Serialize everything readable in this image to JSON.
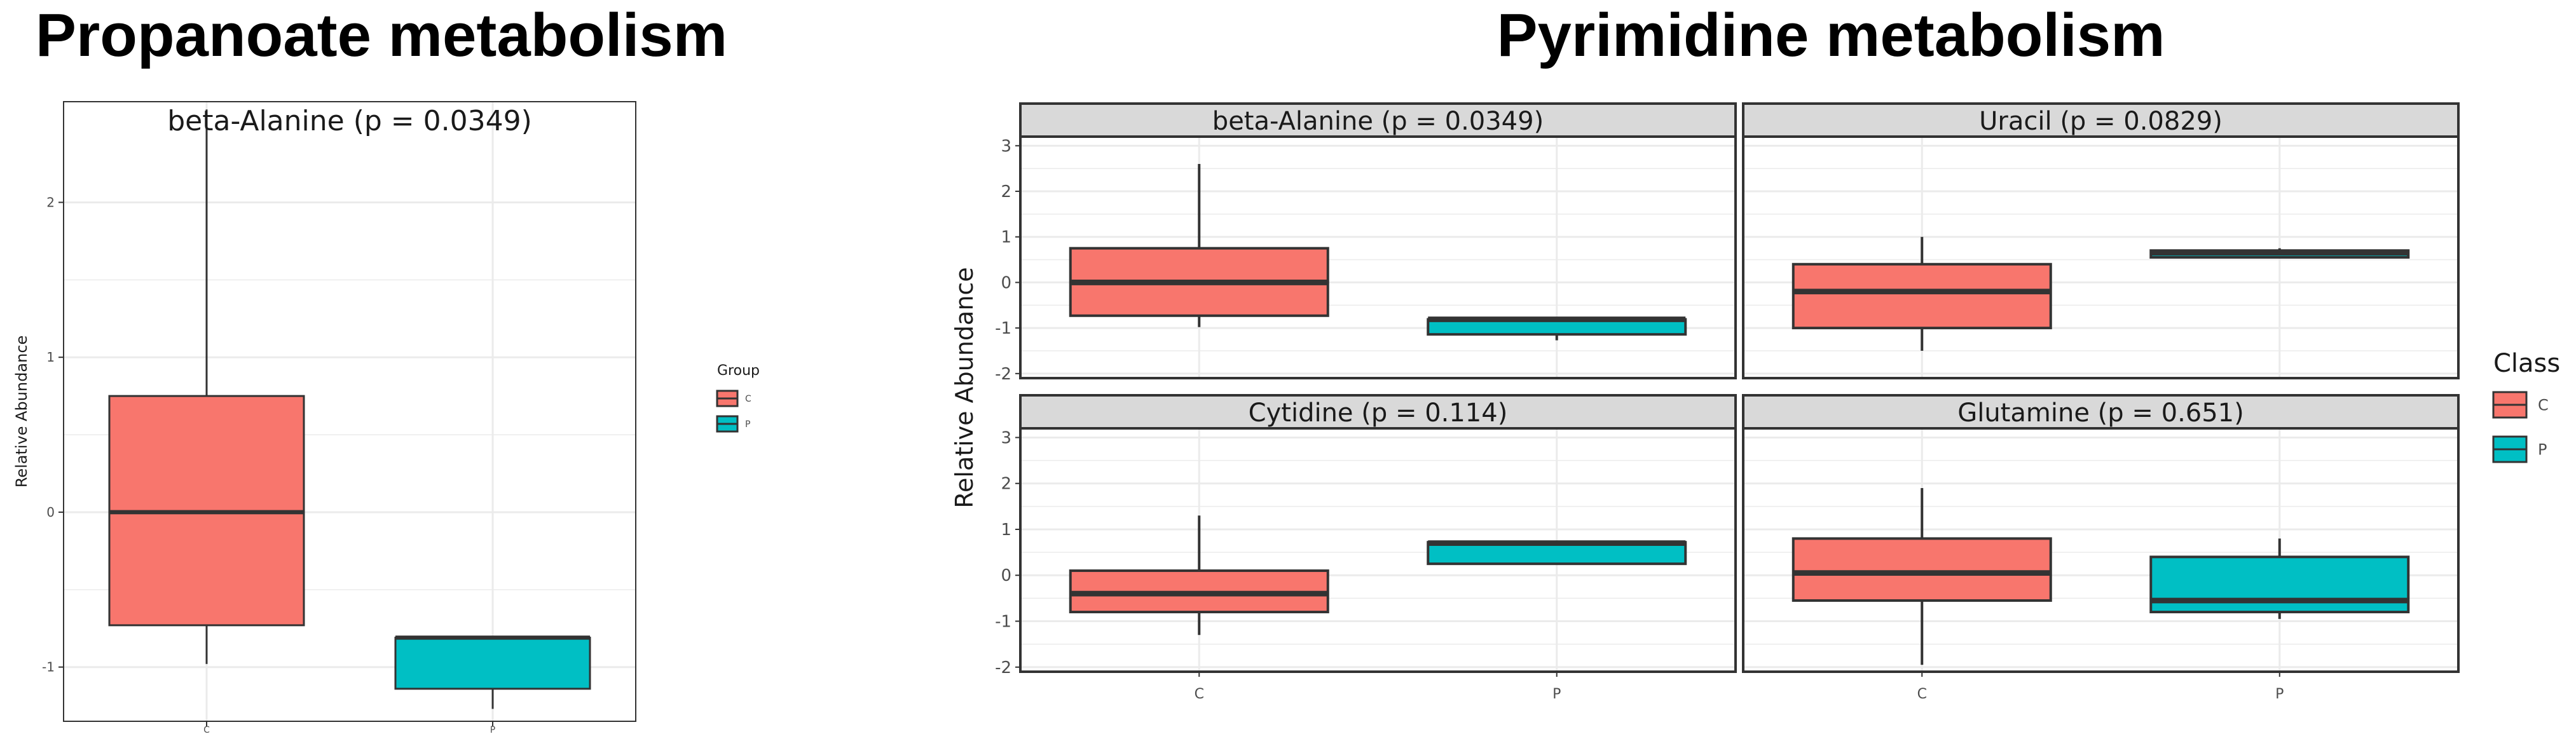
{
  "titles": {
    "left": "Propanoate metabolism",
    "right": "Pyrimidine metabolism"
  },
  "colors": {
    "C": "#F8766D",
    "P": "#00BFC4",
    "panel_bg": "#ffffff",
    "grid": "#ebebeb",
    "strip_bg": "#d9d9d9",
    "strip_border": "#333333",
    "box_outline": "#333333"
  },
  "chart_data": [
    {
      "type": "box",
      "title": "Propanoate metabolism",
      "xlabel": "",
      "ylabel": "Relative Abundance",
      "categories": [
        "C",
        "P"
      ],
      "ylim": [
        -1.35,
        2.65
      ],
      "yticks": [
        -1,
        0,
        1,
        2
      ],
      "ytick_labels": [
        "-1",
        "0",
        "1",
        "2"
      ],
      "legend": {
        "title": "Group",
        "entries": [
          "C",
          "P"
        ],
        "position": "right"
      },
      "grid": true,
      "panels": [
        {
          "label": "beta-Alanine (p = 0.0349)",
          "boxes": [
            {
              "group": "C",
              "whisker_low": -0.98,
              "q1": -0.73,
              "median": 0.0,
              "q3": 0.75,
              "whisker_high": 2.6
            },
            {
              "group": "P",
              "whisker_low": -1.27,
              "q1": -1.14,
              "median": -0.81,
              "q3": -0.81,
              "whisker_high": -0.81
            }
          ]
        }
      ]
    },
    {
      "type": "box",
      "title": "Pyrimidine metabolism",
      "xlabel": "",
      "ylabel": "Relative Abundance",
      "categories": [
        "C",
        "P"
      ],
      "ylim": [
        -2.1,
        3.2
      ],
      "yticks": [
        -2,
        -1,
        0,
        1,
        2,
        3
      ],
      "ytick_labels": [
        "-2",
        "-1",
        "0",
        "1",
        "2",
        "3"
      ],
      "legend": {
        "title": "Class",
        "entries": [
          "C",
          "P"
        ],
        "position": "right"
      },
      "grid": true,
      "panels": [
        {
          "label": "beta-Alanine (p = 0.0349)",
          "boxes": [
            {
              "group": "C",
              "whisker_low": -0.98,
              "q1": -0.73,
              "median": 0.0,
              "q3": 0.75,
              "whisker_high": 2.6
            },
            {
              "group": "P",
              "whisker_low": -1.27,
              "q1": -1.14,
              "median": -0.81,
              "q3": -0.81,
              "whisker_high": -0.81
            }
          ]
        },
        {
          "label": "Uracil (p = 0.0829)",
          "boxes": [
            {
              "group": "C",
              "whisker_low": -1.5,
              "q1": -1.0,
              "median": -0.2,
              "q3": 0.4,
              "whisker_high": 1.0
            },
            {
              "group": "P",
              "whisker_low": 0.55,
              "q1": 0.55,
              "median": 0.65,
              "q3": 0.7,
              "whisker_high": 0.75
            }
          ]
        },
        {
          "label": "Cytidine (p = 0.114)",
          "boxes": [
            {
              "group": "C",
              "whisker_low": -1.3,
              "q1": -0.8,
              "median": -0.4,
              "q3": 0.1,
              "whisker_high": 1.3
            },
            {
              "group": "P",
              "whisker_low": 0.25,
              "q1": 0.25,
              "median": 0.7,
              "q3": 0.72,
              "whisker_high": 0.72
            }
          ]
        },
        {
          "label": "Glutamine (p = 0.651)",
          "boxes": [
            {
              "group": "C",
              "whisker_low": -1.95,
              "q1": -0.55,
              "median": 0.05,
              "q3": 0.8,
              "whisker_high": 1.9
            },
            {
              "group": "P",
              "whisker_low": -0.95,
              "q1": -0.8,
              "median": -0.55,
              "q3": 0.4,
              "whisker_high": 0.8
            }
          ]
        }
      ]
    }
  ]
}
